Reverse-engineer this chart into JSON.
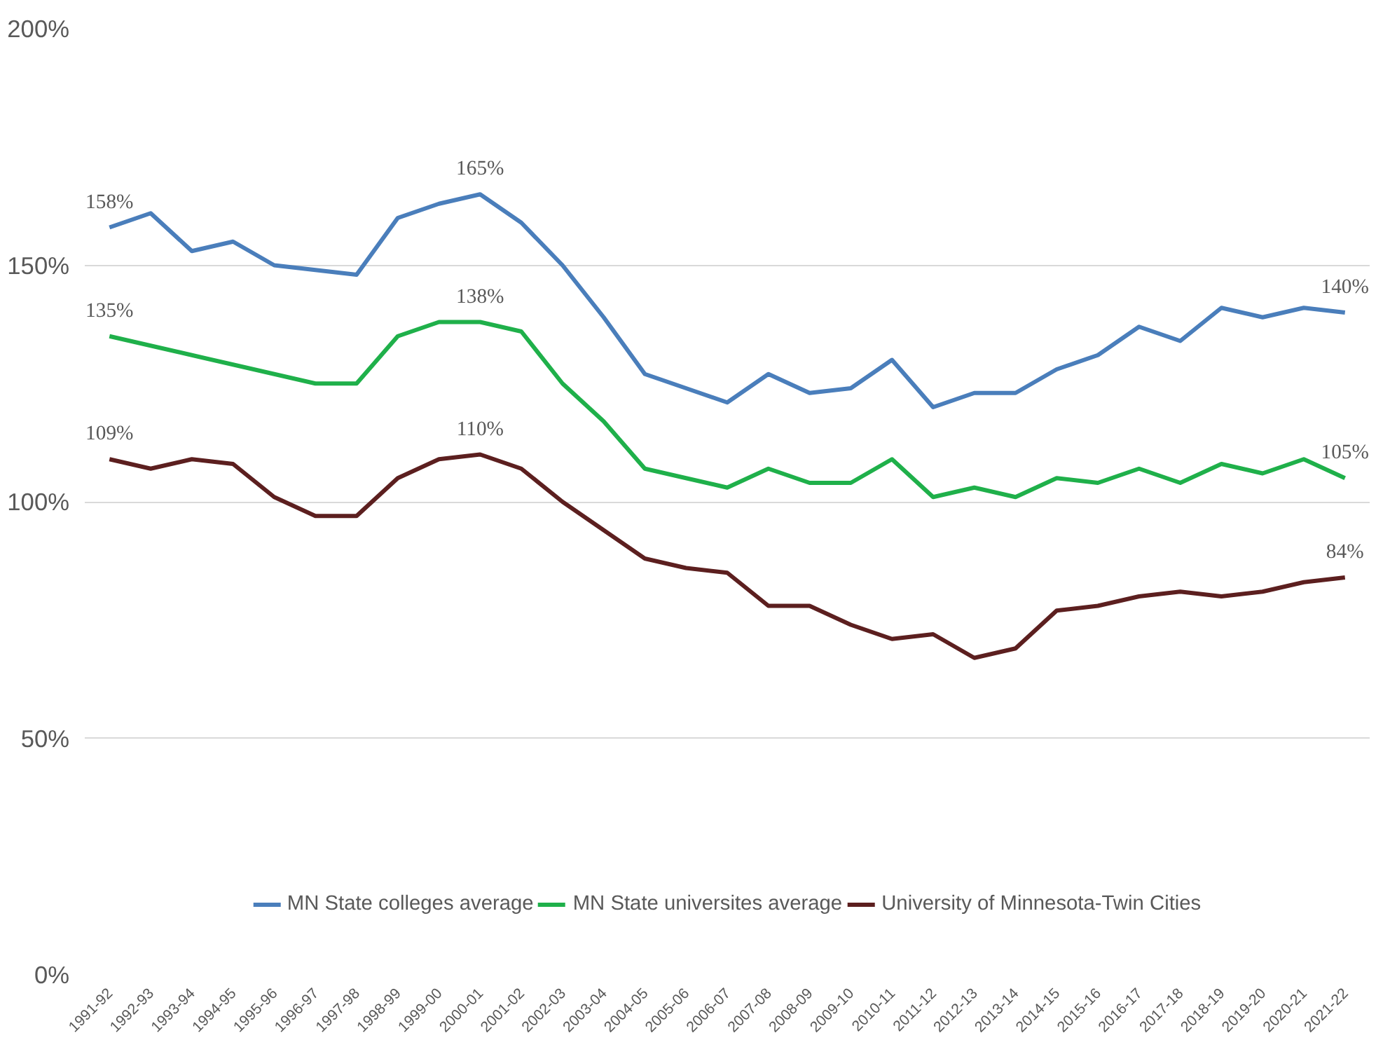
{
  "chart_data": {
    "type": "line",
    "categories": [
      "1991-92",
      "1992-93",
      "1993-94",
      "1994-95",
      "1995-96",
      "1996-97",
      "1997-98",
      "1998-99",
      "1999-00",
      "2000-01",
      "2001-02",
      "2002-03",
      "2003-04",
      "2004-05",
      "2005-06",
      "2006-07",
      "2007-08",
      "2008-09",
      "2009-10",
      "2010-11",
      "2011-12",
      "2012-13",
      "2013-14",
      "2014-15",
      "2015-16",
      "2016-17",
      "2017-18",
      "2018-19",
      "2019-20",
      "2020-21",
      "2021-22"
    ],
    "series": [
      {
        "name": "MN State colleges average",
        "color": "#4a7ebb",
        "values": [
          158,
          161,
          153,
          155,
          150,
          149,
          148,
          160,
          163,
          165,
          159,
          150,
          139,
          127,
          124,
          121,
          127,
          123,
          124,
          130,
          120,
          123,
          123,
          128,
          131,
          137,
          134,
          141,
          139,
          141,
          140
        ],
        "value_labels": [
          "158%",
          null,
          null,
          null,
          null,
          null,
          null,
          null,
          null,
          "165%",
          null,
          null,
          null,
          null,
          null,
          null,
          null,
          null,
          null,
          null,
          null,
          null,
          null,
          null,
          null,
          null,
          null,
          null,
          null,
          null,
          "140%"
        ]
      },
      {
        "name": "MN State universites average",
        "color": "#1fb04a",
        "values": [
          135,
          133,
          131,
          129,
          127,
          125,
          125,
          135,
          138,
          138,
          136,
          125,
          117,
          107,
          105,
          103,
          107,
          104,
          104,
          109,
          101,
          103,
          101,
          105,
          104,
          107,
          104,
          108,
          106,
          109,
          105
        ],
        "value_labels": [
          "135%",
          null,
          null,
          null,
          null,
          null,
          null,
          null,
          null,
          "138%",
          null,
          null,
          null,
          null,
          null,
          null,
          null,
          null,
          null,
          null,
          null,
          null,
          null,
          null,
          null,
          null,
          null,
          null,
          null,
          null,
          "105%"
        ]
      },
      {
        "name": "University of Minnesota-Twin Cities",
        "color": "#5c1f1f",
        "values": [
          109,
          107,
          109,
          108,
          101,
          97,
          97,
          105,
          109,
          110,
          107,
          100,
          94,
          88,
          86,
          85,
          78,
          78,
          74,
          71,
          72,
          67,
          69,
          77,
          78,
          80,
          81,
          80,
          81,
          83,
          84
        ],
        "value_labels": [
          "109%",
          null,
          null,
          null,
          null,
          null,
          null,
          null,
          null,
          "110%",
          null,
          null,
          null,
          null,
          null,
          null,
          null,
          null,
          null,
          null,
          null,
          null,
          null,
          null,
          null,
          null,
          null,
          null,
          null,
          null,
          "84%"
        ]
      }
    ],
    "ylim": [
      0,
      200
    ],
    "yticks": [
      {
        "value": 0,
        "label": "0%"
      },
      {
        "value": 50,
        "label": "50%"
      },
      {
        "value": 100,
        "label": "100%"
      },
      {
        "value": 150,
        "label": "150%"
      },
      {
        "value": 200,
        "label": "200%"
      }
    ],
    "grid": "y",
    "legend": "bottom",
    "line_style": "solid"
  }
}
